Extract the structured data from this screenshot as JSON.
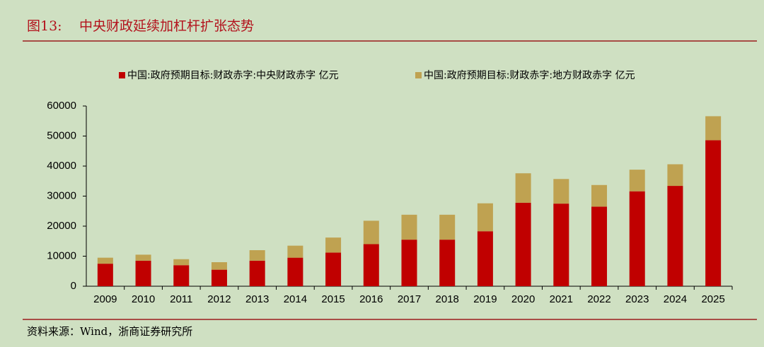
{
  "chart_data": {
    "type": "stacked_bar",
    "figure_label": "图13:",
    "title": "中央财政延续加杠杆扩张态势",
    "source": "资料来源：Wind，浙商证券研究所",
    "categories": [
      "2009",
      "2010",
      "2011",
      "2012",
      "2013",
      "2014",
      "2015",
      "2016",
      "2017",
      "2018",
      "2019",
      "2020",
      "2021",
      "2022",
      "2023",
      "2024",
      "2025"
    ],
    "series": [
      {
        "name": "中国:政府预期目标:财政赤字:中央财政赤字 亿元",
        "color": "#c00000",
        "values": [
          7500,
          8500,
          7000,
          5500,
          8500,
          9500,
          11200,
          14000,
          15500,
          15500,
          18300,
          27800,
          27500,
          26500,
          31600,
          33400,
          48600
        ]
      },
      {
        "name": "中国:政府预期目标:财政赤字:地方财政赤字 亿元",
        "color": "#bfa251",
        "values": [
          2000,
          2000,
          2000,
          2500,
          3500,
          4000,
          5000,
          7800,
          8300,
          8300,
          9300,
          9800,
          8200,
          7200,
          7200,
          7200,
          8000
        ]
      }
    ],
    "ylim": [
      0,
      60000
    ],
    "yticks": [
      0,
      10000,
      20000,
      30000,
      40000,
      50000,
      60000
    ]
  }
}
